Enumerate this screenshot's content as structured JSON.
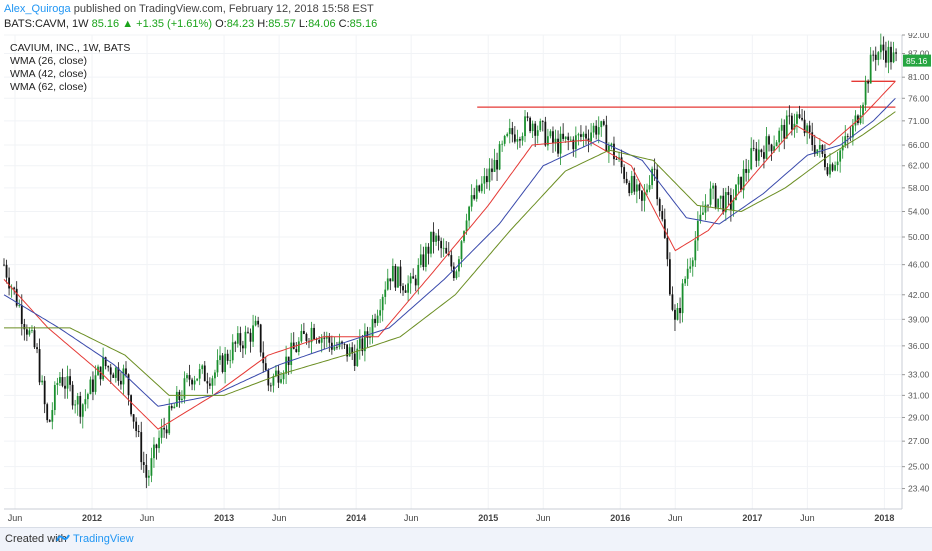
{
  "header": {
    "author": "Alex_Quiroga",
    "published_text": "published on TradingView.com, February 12, 2018 15:58 EST"
  },
  "ohlc": {
    "symbol": "BATS:CAVM, 1W",
    "last": "85.16",
    "arrow": "▲",
    "change": "+1.35 (+1.61%)",
    "o_label": "O:",
    "o": "84.23",
    "h_label": "H:",
    "h": "85.57",
    "l_label": "L:",
    "l": "84.06",
    "c_label": "C:",
    "c": "85.16"
  },
  "legend": {
    "title": "CAVIUM, INC., 1W, BATS",
    "wma26": "WMA (26, close)",
    "wma42": "WMA (42, close)",
    "wma62": "WMA (62, close)"
  },
  "footer": {
    "created": "Created with",
    "brand": "TradingView",
    "brand_icon": "tradingview-logo-icon"
  },
  "colors": {
    "up": "#1a8f2e",
    "down": "#111111",
    "wma26": "#e53935",
    "wma42": "#3949ab",
    "wma62": "#6b8e23",
    "hline": "#e53935",
    "price_tag": "#26a541"
  },
  "chart_data": {
    "type": "candlestick",
    "title": "CAVIUM, INC., 1W, BATS",
    "x_start": "2011-05",
    "x_end": "2018-02",
    "ylim": [
      22.0,
      92.0
    ],
    "y_scale": "log",
    "y_ticks": [
      23.4,
      25.0,
      27.0,
      29.0,
      31.0,
      33.0,
      36.0,
      39.0,
      42.0,
      46.0,
      50.0,
      54.0,
      58.0,
      62.0,
      66.0,
      71.0,
      76.0,
      81.0,
      87.0,
      92.0
    ],
    "x_ticks": [
      {
        "label": "Jun",
        "date": "2011-06"
      },
      {
        "label": "2012",
        "date": "2012-01"
      },
      {
        "label": "Jun",
        "date": "2012-06"
      },
      {
        "label": "2013",
        "date": "2013-01"
      },
      {
        "label": "Jun",
        "date": "2013-06"
      },
      {
        "label": "2014",
        "date": "2014-01"
      },
      {
        "label": "Jun",
        "date": "2014-06"
      },
      {
        "label": "2015",
        "date": "2015-01"
      },
      {
        "label": "Jun",
        "date": "2015-06"
      },
      {
        "label": "2016",
        "date": "2016-01"
      },
      {
        "label": "Jun",
        "date": "2016-06"
      },
      {
        "label": "2017",
        "date": "2017-01"
      },
      {
        "label": "Jun",
        "date": "2017-06"
      },
      {
        "label": "2018",
        "date": "2018-01"
      }
    ],
    "price_path": [
      [
        "2011-05",
        46
      ],
      [
        "2011-06",
        42
      ],
      [
        "2011-08",
        35
      ],
      [
        "2011-09",
        28
      ],
      [
        "2011-10",
        33
      ],
      [
        "2011-12",
        30
      ],
      [
        "2012-02",
        34
      ],
      [
        "2012-04",
        33
      ],
      [
        "2012-05",
        28
      ],
      [
        "2012-06",
        24
      ],
      [
        "2012-07",
        27
      ],
      [
        "2012-08",
        29
      ],
      [
        "2012-10",
        33
      ],
      [
        "2012-12",
        33
      ],
      [
        "2013-02",
        36
      ],
      [
        "2013-04",
        38
      ],
      [
        "2013-05",
        32
      ],
      [
        "2013-07",
        35
      ],
      [
        "2013-09",
        38
      ],
      [
        "2013-11",
        36
      ],
      [
        "2014-01",
        35
      ],
      [
        "2014-02",
        37
      ],
      [
        "2014-04",
        45
      ],
      [
        "2014-06",
        43
      ],
      [
        "2014-08",
        50
      ],
      [
        "2014-10",
        45
      ],
      [
        "2014-11",
        54
      ],
      [
        "2015-01",
        60
      ],
      [
        "2015-03",
        68
      ],
      [
        "2015-05",
        71
      ],
      [
        "2015-07",
        66
      ],
      [
        "2015-09",
        67
      ],
      [
        "2015-11",
        70
      ],
      [
        "2016-01",
        62
      ],
      [
        "2016-03",
        55
      ],
      [
        "2016-04",
        63
      ],
      [
        "2016-05",
        50
      ],
      [
        "2016-06",
        38
      ],
      [
        "2016-07",
        45
      ],
      [
        "2016-09",
        57
      ],
      [
        "2016-11",
        55
      ],
      [
        "2017-01",
        64
      ],
      [
        "2017-03",
        67
      ],
      [
        "2017-05",
        72
      ],
      [
        "2017-06",
        68
      ],
      [
        "2017-08",
        62
      ],
      [
        "2017-10",
        68
      ],
      [
        "2017-11",
        76
      ],
      [
        "2017-12",
        87
      ],
      [
        "2018-01",
        88
      ],
      [
        "2018-02",
        85.16
      ]
    ],
    "series": [
      {
        "name": "WMA (26, close)",
        "points": [
          [
            "2011-05",
            44
          ],
          [
            "2011-09",
            38
          ],
          [
            "2012-02",
            33
          ],
          [
            "2012-07",
            28
          ],
          [
            "2012-12",
            31
          ],
          [
            "2013-05",
            35
          ],
          [
            "2013-10",
            37
          ],
          [
            "2014-03",
            37
          ],
          [
            "2014-08",
            45
          ],
          [
            "2015-01",
            55
          ],
          [
            "2015-05",
            66
          ],
          [
            "2015-10",
            67
          ],
          [
            "2016-02",
            62
          ],
          [
            "2016-06",
            48
          ],
          [
            "2016-09",
            51
          ],
          [
            "2017-01",
            60
          ],
          [
            "2017-05",
            70
          ],
          [
            "2017-08",
            66
          ],
          [
            "2017-11",
            72
          ],
          [
            "2018-02",
            80
          ]
        ]
      },
      {
        "name": "WMA (42, close)",
        "points": [
          [
            "2011-05",
            42
          ],
          [
            "2011-10",
            38
          ],
          [
            "2012-03",
            34
          ],
          [
            "2012-07",
            30
          ],
          [
            "2012-12",
            31
          ],
          [
            "2013-06",
            34
          ],
          [
            "2013-11",
            36
          ],
          [
            "2014-04",
            38
          ],
          [
            "2014-09",
            44
          ],
          [
            "2015-02",
            52
          ],
          [
            "2015-06",
            62
          ],
          [
            "2015-11",
            67
          ],
          [
            "2016-03",
            63
          ],
          [
            "2016-07",
            53
          ],
          [
            "2016-10",
            52
          ],
          [
            "2017-02",
            57
          ],
          [
            "2017-06",
            64
          ],
          [
            "2017-09",
            66
          ],
          [
            "2017-12",
            71
          ],
          [
            "2018-02",
            76
          ]
        ]
      },
      {
        "name": "WMA (62, close)",
        "points": [
          [
            "2011-05",
            38
          ],
          [
            "2011-11",
            38
          ],
          [
            "2012-04",
            35
          ],
          [
            "2012-08",
            31
          ],
          [
            "2013-01",
            31
          ],
          [
            "2013-06",
            33
          ],
          [
            "2013-12",
            35
          ],
          [
            "2014-05",
            37
          ],
          [
            "2014-10",
            42
          ],
          [
            "2015-03",
            51
          ],
          [
            "2015-08",
            61
          ],
          [
            "2015-12",
            65
          ],
          [
            "2016-04",
            63
          ],
          [
            "2016-08",
            55
          ],
          [
            "2016-12",
            54
          ],
          [
            "2017-04",
            58
          ],
          [
            "2017-08",
            64
          ],
          [
            "2017-11",
            68
          ],
          [
            "2018-02",
            73
          ]
        ]
      }
    ],
    "annotations": [
      {
        "type": "horizontal_line",
        "y": 74.0,
        "from": "2014-12",
        "to": "2018-02"
      },
      {
        "type": "horizontal_line",
        "y": 80.0,
        "from": "2017-10",
        "to": "2018-02"
      }
    ],
    "last_price_label": "85.16",
    "legend_position": "top-left",
    "grid": true
  }
}
